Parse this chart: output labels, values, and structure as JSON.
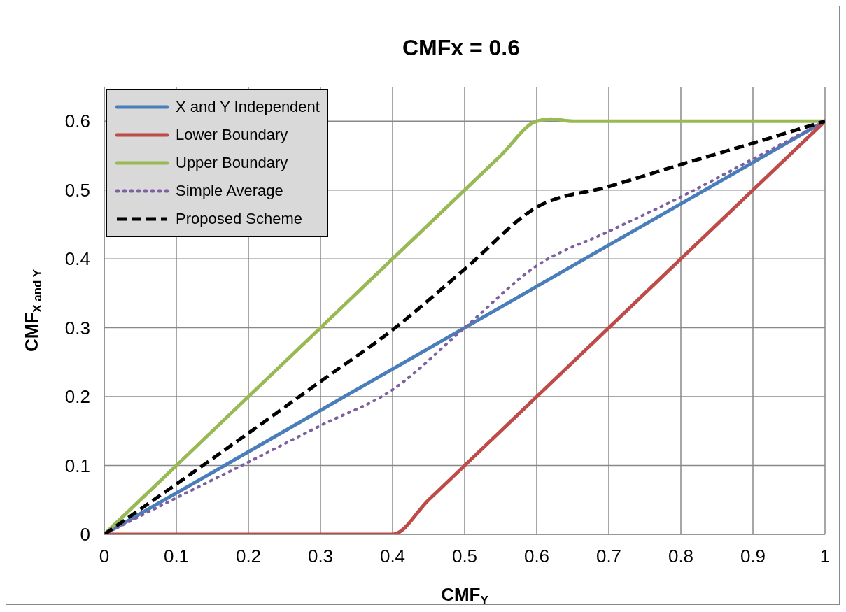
{
  "chart_data": {
    "type": "line",
    "title": "CMFx = 0.6",
    "xlabel": "CMF$_{Y}$",
    "ylabel": "CMF$_{X and Y}$",
    "xlim": [
      0,
      1
    ],
    "xticks": [
      0,
      0.1,
      0.2,
      0.3,
      0.4,
      0.5,
      0.6,
      0.7,
      0.8,
      0.9,
      1
    ],
    "ylim": [
      0,
      0.65
    ],
    "yticks": [
      0,
      0.1,
      0.2,
      0.3,
      0.4,
      0.5,
      0.6
    ],
    "grid": true,
    "legend": "top left",
    "marker": "none",
    "series": [
      {
        "name": "X and Y Independent",
        "color": "#4a7ebb",
        "line_style": "solid",
        "x": [
          0,
          0.5,
          1
        ],
        "values": [
          0,
          0.3,
          0.6
        ]
      },
      {
        "name": "Lower Boundary",
        "color": "#be4b48",
        "line_style": "solid",
        "x": [
          0,
          0.35,
          0.4,
          0.45,
          0.5,
          1
        ],
        "values": [
          0,
          0,
          0,
          0.05,
          0.1,
          0.6
        ]
      },
      {
        "name": "Upper Boundary",
        "color": "#98b954",
        "line_style": "solid",
        "x": [
          0,
          0.55,
          0.6,
          0.62,
          0.65,
          1
        ],
        "values": [
          0,
          0.55,
          0.6,
          0.603,
          0.6,
          0.6
        ]
      },
      {
        "name": "Simple Average",
        "color": "#7d60a0",
        "line_style": "dotted",
        "x": [
          0,
          0.1,
          0.2,
          0.3,
          0.4,
          0.5,
          0.6,
          0.7,
          0.8,
          0.9,
          1
        ],
        "values": [
          0,
          0.053,
          0.105,
          0.158,
          0.21,
          0.3,
          0.39,
          0.44,
          0.49,
          0.545,
          0.6
        ]
      },
      {
        "name": "Proposed Scheme",
        "color": "#000000",
        "line_style": "dashed",
        "x": [
          0,
          0.1,
          0.2,
          0.3,
          0.4,
          0.5,
          0.6,
          0.7,
          0.8,
          0.9,
          1
        ],
        "values": [
          0,
          0.073,
          0.147,
          0.222,
          0.297,
          0.385,
          0.475,
          0.505,
          0.537,
          0.568,
          0.6
        ]
      }
    ]
  }
}
